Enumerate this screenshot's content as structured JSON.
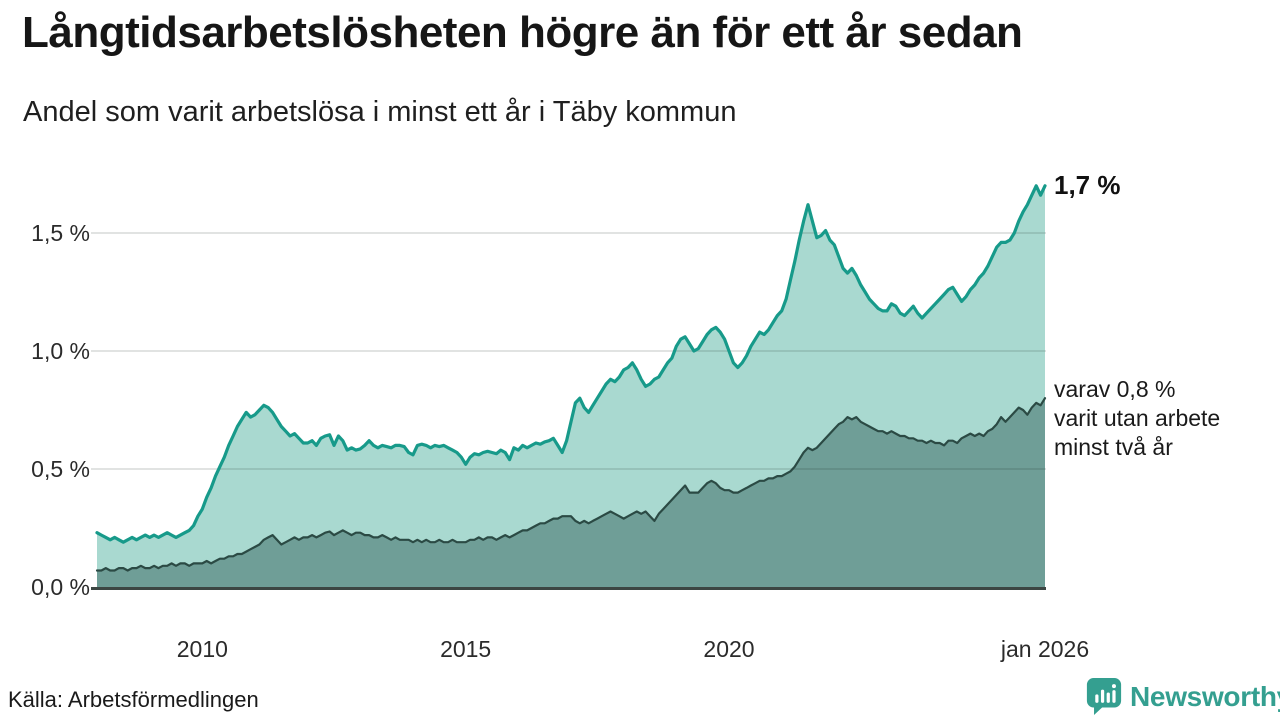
{
  "header": {
    "title": "Långtidsarbetslösheten högre än för ett år sedan",
    "subtitle": "Andel som varit arbetslösa i minst ett år i Täby kommun"
  },
  "chart_data": {
    "type": "area",
    "title": "Långtidsarbetslösheten högre än för ett år sedan",
    "subtitle": "Andel som varit arbetslösa i minst ett år i Täby kommun",
    "unit": "%",
    "frequency": "monthly",
    "x_start": "2008-01",
    "x_end": "2026-01",
    "ylim": [
      0,
      1.8
    ],
    "grid": true,
    "y_ticks": [
      {
        "value": 0.0,
        "label": "0,0 %"
      },
      {
        "value": 0.5,
        "label": "0,5 %"
      },
      {
        "value": 1.0,
        "label": "1,0 %"
      },
      {
        "value": 1.5,
        "label": "1,5 %"
      }
    ],
    "x_ticks": [
      {
        "index": 24,
        "label": "2010"
      },
      {
        "index": 84,
        "label": "2015"
      },
      {
        "index": 144,
        "label": "2020"
      },
      {
        "index": 216,
        "label": "jan 2026"
      }
    ],
    "colors": {
      "line_1yr": "#179a8a",
      "fill_1yr": "#a9d9d0",
      "line_2yr": "#2b4a44",
      "fill_2yr": "#6f9e97",
      "baseline": "#3c4643",
      "gridline": "rgba(25,35,32,0.13)"
    },
    "series": [
      {
        "name": "minst ett år",
        "color": "#179a8a",
        "fill": "#a9d9d0",
        "stroke_width": 3.2,
        "latest_value": 1.7,
        "values": [
          0.23,
          0.22,
          0.21,
          0.2,
          0.21,
          0.2,
          0.19,
          0.2,
          0.21,
          0.2,
          0.21,
          0.22,
          0.21,
          0.22,
          0.21,
          0.22,
          0.23,
          0.22,
          0.21,
          0.22,
          0.23,
          0.24,
          0.26,
          0.3,
          0.33,
          0.38,
          0.42,
          0.47,
          0.51,
          0.55,
          0.6,
          0.64,
          0.68,
          0.71,
          0.74,
          0.72,
          0.73,
          0.75,
          0.77,
          0.76,
          0.74,
          0.71,
          0.68,
          0.66,
          0.64,
          0.65,
          0.63,
          0.61,
          0.61,
          0.62,
          0.6,
          0.63,
          0.64,
          0.645,
          0.6,
          0.64,
          0.62,
          0.58,
          0.59,
          0.58,
          0.585,
          0.6,
          0.62,
          0.6,
          0.59,
          0.6,
          0.595,
          0.59,
          0.6,
          0.6,
          0.595,
          0.57,
          0.56,
          0.6,
          0.605,
          0.6,
          0.59,
          0.6,
          0.595,
          0.6,
          0.59,
          0.58,
          0.57,
          0.55,
          0.52,
          0.55,
          0.565,
          0.56,
          0.57,
          0.575,
          0.57,
          0.565,
          0.58,
          0.57,
          0.54,
          0.59,
          0.58,
          0.6,
          0.59,
          0.6,
          0.61,
          0.605,
          0.615,
          0.62,
          0.63,
          0.6,
          0.57,
          0.62,
          0.7,
          0.78,
          0.8,
          0.76,
          0.74,
          0.77,
          0.8,
          0.83,
          0.86,
          0.88,
          0.87,
          0.89,
          0.92,
          0.93,
          0.95,
          0.92,
          0.88,
          0.85,
          0.86,
          0.88,
          0.89,
          0.92,
          0.95,
          0.97,
          1.02,
          1.05,
          1.06,
          1.03,
          1.0,
          1.01,
          1.04,
          1.07,
          1.09,
          1.1,
          1.08,
          1.05,
          1.0,
          0.95,
          0.93,
          0.95,
          0.98,
          1.02,
          1.05,
          1.08,
          1.07,
          1.09,
          1.12,
          1.15,
          1.17,
          1.22,
          1.3,
          1.38,
          1.47,
          1.55,
          1.62,
          1.55,
          1.48,
          1.49,
          1.51,
          1.47,
          1.45,
          1.4,
          1.35,
          1.33,
          1.35,
          1.32,
          1.28,
          1.25,
          1.22,
          1.2,
          1.18,
          1.17,
          1.17,
          1.2,
          1.19,
          1.16,
          1.15,
          1.17,
          1.19,
          1.16,
          1.14,
          1.16,
          1.18,
          1.2,
          1.22,
          1.24,
          1.26,
          1.27,
          1.24,
          1.21,
          1.23,
          1.26,
          1.28,
          1.31,
          1.33,
          1.36,
          1.4,
          1.44,
          1.46,
          1.46,
          1.47,
          1.5,
          1.55,
          1.59,
          1.62,
          1.66,
          1.7,
          1.66,
          1.7
        ]
      },
      {
        "name": "minst två år",
        "color": "#2b4a44",
        "fill": "#6f9e97",
        "stroke_width": 2.2,
        "latest_value": 0.8,
        "values": [
          0.07,
          0.07,
          0.08,
          0.07,
          0.07,
          0.08,
          0.08,
          0.07,
          0.08,
          0.08,
          0.09,
          0.08,
          0.08,
          0.09,
          0.08,
          0.09,
          0.09,
          0.1,
          0.09,
          0.1,
          0.1,
          0.09,
          0.1,
          0.1,
          0.1,
          0.11,
          0.1,
          0.11,
          0.12,
          0.12,
          0.13,
          0.13,
          0.14,
          0.14,
          0.15,
          0.16,
          0.17,
          0.18,
          0.2,
          0.21,
          0.22,
          0.2,
          0.18,
          0.19,
          0.2,
          0.21,
          0.2,
          0.21,
          0.21,
          0.22,
          0.21,
          0.22,
          0.23,
          0.235,
          0.22,
          0.23,
          0.24,
          0.23,
          0.22,
          0.23,
          0.23,
          0.22,
          0.22,
          0.21,
          0.21,
          0.22,
          0.21,
          0.2,
          0.21,
          0.2,
          0.2,
          0.2,
          0.19,
          0.2,
          0.19,
          0.2,
          0.19,
          0.19,
          0.2,
          0.19,
          0.19,
          0.2,
          0.19,
          0.19,
          0.19,
          0.2,
          0.2,
          0.21,
          0.2,
          0.21,
          0.21,
          0.2,
          0.21,
          0.22,
          0.21,
          0.22,
          0.23,
          0.24,
          0.24,
          0.25,
          0.26,
          0.27,
          0.27,
          0.28,
          0.29,
          0.29,
          0.3,
          0.3,
          0.3,
          0.28,
          0.27,
          0.28,
          0.27,
          0.28,
          0.29,
          0.3,
          0.31,
          0.32,
          0.31,
          0.3,
          0.29,
          0.3,
          0.31,
          0.32,
          0.31,
          0.32,
          0.3,
          0.28,
          0.31,
          0.33,
          0.35,
          0.37,
          0.39,
          0.41,
          0.43,
          0.4,
          0.4,
          0.4,
          0.42,
          0.44,
          0.45,
          0.44,
          0.42,
          0.41,
          0.41,
          0.4,
          0.4,
          0.41,
          0.42,
          0.43,
          0.44,
          0.45,
          0.45,
          0.46,
          0.46,
          0.47,
          0.47,
          0.48,
          0.49,
          0.51,
          0.54,
          0.57,
          0.59,
          0.58,
          0.59,
          0.61,
          0.63,
          0.65,
          0.67,
          0.69,
          0.7,
          0.72,
          0.71,
          0.72,
          0.7,
          0.69,
          0.68,
          0.67,
          0.66,
          0.66,
          0.65,
          0.66,
          0.65,
          0.64,
          0.64,
          0.63,
          0.63,
          0.62,
          0.62,
          0.61,
          0.62,
          0.61,
          0.61,
          0.6,
          0.62,
          0.62,
          0.61,
          0.63,
          0.64,
          0.65,
          0.64,
          0.65,
          0.64,
          0.66,
          0.67,
          0.69,
          0.72,
          0.7,
          0.72,
          0.74,
          0.76,
          0.75,
          0.73,
          0.76,
          0.78,
          0.77,
          0.8
        ]
      }
    ],
    "annotations": {
      "latest_label": "1,7 %",
      "secondary_lines": [
        "varav 0,8 %",
        "varit utan arbete",
        "minst två år"
      ]
    }
  },
  "footer": {
    "source": "Källa: Arbetsförmedlingen",
    "brand": "Newsworthy",
    "brand_icon": "newsworthy-bubble-barchart-icon",
    "brand_color": "#349f90"
  }
}
